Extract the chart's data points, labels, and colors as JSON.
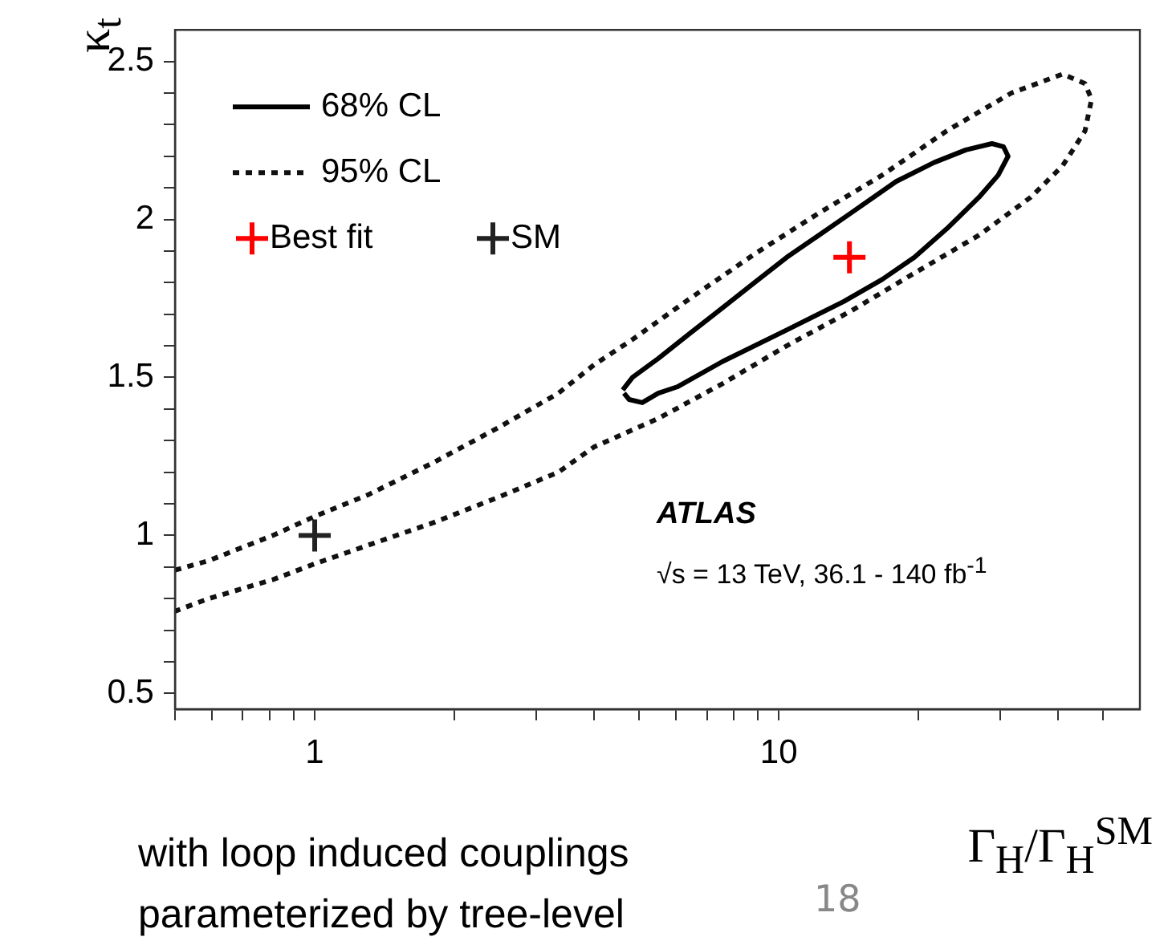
{
  "chart_data": {
    "type": "line",
    "xlabel": "Γ$_{H}$/Γ$_{H}$$^{SM}$",
    "ylabel": "κ$_{t}$",
    "log": "x",
    "legend": "top left",
    "xlim": [
      0.5,
      60
    ],
    "ylim": [
      0.45,
      2.6
    ],
    "xticks": [
      {
        "value": 0.5,
        "label": null
      },
      {
        "value": 0.6,
        "label": null
      },
      {
        "value": 0.7,
        "label": null
      },
      {
        "value": 0.8,
        "label": null
      },
      {
        "value": 0.9,
        "label": null
      },
      1,
      {
        "value": 2,
        "label": null
      },
      {
        "value": 3,
        "label": null
      },
      {
        "value": 4,
        "label": null
      },
      {
        "value": 5,
        "label": null
      },
      {
        "value": 6,
        "label": null
      },
      {
        "value": 7,
        "label": null
      },
      {
        "value": 8,
        "label": null
      },
      {
        "value": 9,
        "label": null
      },
      10,
      {
        "value": 20,
        "label": null
      },
      {
        "value": 30,
        "label": null
      },
      {
        "value": 40,
        "label": null
      },
      {
        "value": 50,
        "label": null
      }
    ],
    "yticks": [
      0.5,
      {
        "value": 0.6,
        "label": null
      },
      {
        "value": 0.7,
        "label": null
      },
      {
        "value": 0.8,
        "label": null
      },
      {
        "value": 0.9,
        "label": null
      },
      1,
      {
        "value": 1.1,
        "label": null
      },
      {
        "value": 1.2,
        "label": null
      },
      {
        "value": 1.3,
        "label": null
      },
      {
        "value": 1.4,
        "label": null
      },
      1.5,
      {
        "value": 1.6,
        "label": null
      },
      {
        "value": 1.7,
        "label": null
      },
      {
        "value": 1.8,
        "label": null
      },
      {
        "value": 1.9,
        "label": null
      },
      2,
      {
        "value": 2.1,
        "label": null
      },
      {
        "value": 2.2,
        "label": null
      },
      {
        "value": 2.3,
        "label": null
      },
      {
        "value": 2.4,
        "label": null
      },
      2.5
    ],
    "series": [
      {
        "name": "68% CL",
        "line_style": "solid",
        "color": "#000000",
        "x": [
          4.61,
          4.84,
          5.5,
          6.44,
          7.56,
          8.86,
          10.4,
          12.2,
          14.3,
          17.9,
          21.6,
          25.3,
          28.8,
          30.5,
          31.2,
          29.7,
          27.0,
          23.0,
          19.6,
          16.7,
          13.8,
          10.4,
          7.56,
          6.04,
          5.5,
          5.08,
          4.76,
          4.64
        ],
        "values": [
          1.46,
          1.5,
          1.56,
          1.64,
          1.72,
          1.8,
          1.88,
          1.95,
          2.02,
          2.12,
          2.18,
          2.22,
          2.24,
          2.23,
          2.2,
          2.14,
          2.07,
          1.97,
          1.88,
          1.81,
          1.74,
          1.65,
          1.55,
          1.47,
          1.45,
          1.42,
          1.43,
          1.45
        ]
      },
      {
        "name": "95% CL",
        "line_style": "dotted",
        "color": "#111111",
        "x": [
          0.5,
          0.591,
          0.813,
          1.0,
          1.31,
          1.8,
          2.48,
          3.35,
          4.0,
          4.84,
          6.44,
          8.86,
          12.2,
          16.7,
          23.0,
          31.7,
          40.9,
          45.7,
          47.2,
          45.7,
          40.9,
          34.9,
          27.0,
          19.6,
          14.3,
          10.4,
          7.56,
          5.5,
          4.0,
          3.35,
          2.48,
          1.8,
          1.31,
          1.0,
          0.813,
          0.591,
          0.5
        ],
        "values": [
          0.89,
          0.92,
          1.0,
          1.06,
          1.13,
          1.23,
          1.34,
          1.45,
          1.54,
          1.62,
          1.75,
          1.89,
          2.02,
          2.14,
          2.28,
          2.4,
          2.46,
          2.43,
          2.38,
          2.28,
          2.17,
          2.07,
          1.95,
          1.83,
          1.71,
          1.6,
          1.48,
          1.37,
          1.28,
          1.2,
          1.12,
          1.04,
          0.97,
          0.91,
          0.86,
          0.8,
          0.76
        ]
      },
      {
        "name": "Best fit",
        "type": "scatter",
        "marker": "cross",
        "color": "#ff0000",
        "x": [
          14.2
        ],
        "values": [
          1.88
        ]
      },
      {
        "name": "SM",
        "type": "scatter",
        "marker": "cross",
        "color": "#222222",
        "x": [
          1
        ],
        "values": [
          1
        ]
      }
    ],
    "annotations": [
      "ATLAS",
      "√s = 13 TeV, 36.1 - 140 fb$^{-1}$",
      "with loop induced couplings",
      "parameterized by tree-level",
      "18"
    ]
  }
}
